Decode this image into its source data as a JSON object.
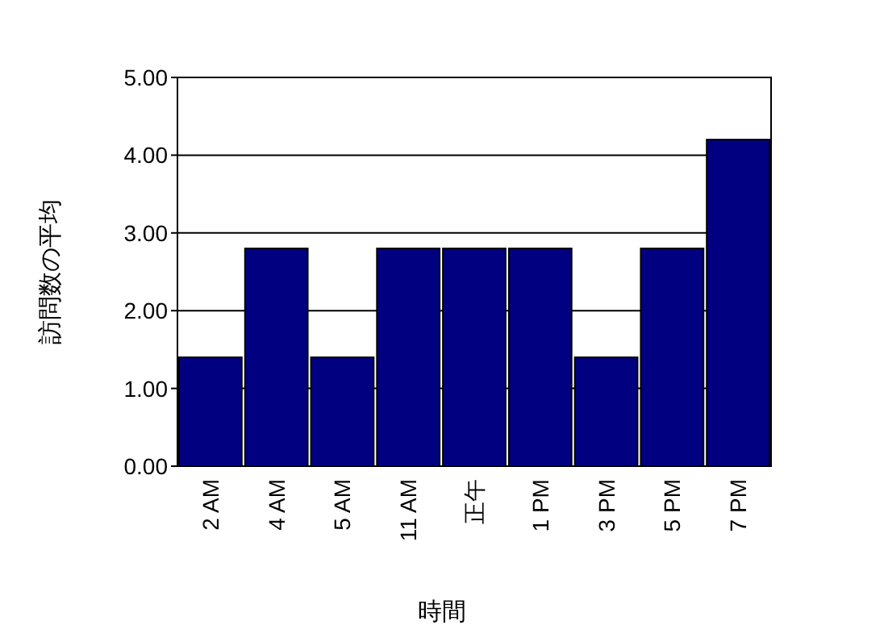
{
  "chart_data": {
    "type": "bar",
    "xlabel": "時間",
    "ylabel": "訪問数の平均",
    "categories": [
      "2 AM",
      "4 AM",
      "5 AM",
      "11 AM",
      "正午",
      "1 PM",
      "3 PM",
      "5 PM",
      "7 PM"
    ],
    "values": [
      1.4,
      2.8,
      1.4,
      2.8,
      2.8,
      2.8,
      1.4,
      2.8,
      4.2
    ],
    "color": "#000080",
    "ylim": [
      0,
      5
    ],
    "yticks": [
      {
        "value": 0,
        "label": "0.00"
      },
      {
        "value": 1,
        "label": "1.00"
      },
      {
        "value": 2,
        "label": "2.00"
      },
      {
        "value": 3,
        "label": "3.00"
      },
      {
        "value": 4,
        "label": "4.00"
      },
      {
        "value": 5,
        "label": "5.00"
      }
    ],
    "grid": "y"
  }
}
